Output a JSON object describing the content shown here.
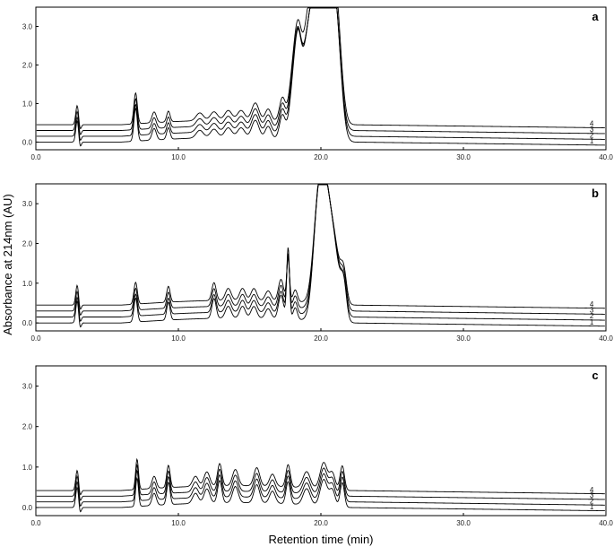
{
  "figure": {
    "ylabel": "Absorbance at 214nm (AU)",
    "xlabel": "Retention time (min)"
  },
  "colors": {
    "line": "#000000",
    "axis": "#000000",
    "text": "#222222"
  },
  "chart_data": [
    {
      "type": "line",
      "panel": "a",
      "xlim": [
        0,
        40
      ],
      "ylim": [
        -0.2,
        3.5
      ],
      "x_ticks": [
        "0.0",
        "10.0",
        "20.0",
        "30.0",
        "40.0"
      ],
      "y_ticks": [
        "0.0",
        "1.0",
        "2.0",
        "3.0"
      ],
      "grid": false,
      "series": [
        {
          "name": "1",
          "offset": 0.0,
          "peaks": [
            [
              2.9,
              0.55,
              0.1
            ],
            [
              7.0,
              0.85,
              0.12
            ],
            [
              8.3,
              0.3,
              0.15
            ],
            [
              9.3,
              0.3,
              0.12
            ],
            [
              11.5,
              0.2,
              0.25
            ],
            [
              12.5,
              0.22,
              0.25
            ],
            [
              13.5,
              0.25,
              0.25
            ],
            [
              14.4,
              0.25,
              0.25
            ],
            [
              15.4,
              0.45,
              0.25
            ],
            [
              16.3,
              0.3,
              0.2
            ],
            [
              17.3,
              0.6,
              0.2
            ],
            [
              18.0,
              1.0,
              0.25
            ],
            [
              18.4,
              2.3,
              0.25
            ],
            [
              19.0,
              2.0,
              0.3
            ],
            [
              19.5,
              2.3,
              0.3
            ],
            [
              20.0,
              2.5,
              0.4
            ],
            [
              20.6,
              2.6,
              0.4
            ],
            [
              21.1,
              2.3,
              0.35
            ]
          ]
        },
        {
          "name": "2",
          "offset": 0.15,
          "peaks": [
            [
              2.9,
              0.5,
              0.1
            ],
            [
              7.0,
              0.8,
              0.12
            ],
            [
              8.3,
              0.28,
              0.15
            ],
            [
              9.3,
              0.28,
              0.12
            ],
            [
              11.5,
              0.2,
              0.25
            ],
            [
              12.5,
              0.22,
              0.25
            ],
            [
              13.5,
              0.25,
              0.25
            ],
            [
              14.4,
              0.25,
              0.25
            ],
            [
              15.4,
              0.45,
              0.25
            ],
            [
              16.3,
              0.3,
              0.2
            ],
            [
              17.3,
              0.6,
              0.2
            ],
            [
              18.0,
              1.0,
              0.25
            ],
            [
              18.4,
              2.2,
              0.25
            ],
            [
              19.0,
              1.9,
              0.3
            ],
            [
              19.5,
              2.2,
              0.3
            ],
            [
              20.0,
              2.4,
              0.4
            ],
            [
              20.6,
              2.5,
              0.4
            ],
            [
              21.1,
              2.2,
              0.35
            ]
          ]
        },
        {
          "name": "3",
          "offset": 0.3,
          "peaks": [
            [
              2.9,
              0.5,
              0.1
            ],
            [
              7.0,
              0.8,
              0.12
            ],
            [
              8.3,
              0.28,
              0.15
            ],
            [
              9.3,
              0.28,
              0.12
            ],
            [
              11.5,
              0.2,
              0.25
            ],
            [
              12.5,
              0.22,
              0.25
            ],
            [
              13.5,
              0.25,
              0.25
            ],
            [
              14.4,
              0.25,
              0.25
            ],
            [
              15.4,
              0.45,
              0.25
            ],
            [
              16.3,
              0.3,
              0.2
            ],
            [
              17.3,
              0.6,
              0.2
            ],
            [
              18.0,
              1.0,
              0.25
            ],
            [
              18.4,
              2.1,
              0.25
            ],
            [
              19.0,
              1.8,
              0.3
            ],
            [
              19.5,
              2.1,
              0.3
            ],
            [
              20.0,
              2.3,
              0.4
            ],
            [
              20.6,
              2.4,
              0.4
            ],
            [
              21.1,
              2.1,
              0.35
            ]
          ]
        },
        {
          "name": "4",
          "offset": 0.45,
          "peaks": [
            [
              2.9,
              0.5,
              0.1
            ],
            [
              7.0,
              0.8,
              0.12
            ],
            [
              8.3,
              0.28,
              0.15
            ],
            [
              9.3,
              0.28,
              0.12
            ],
            [
              11.5,
              0.2,
              0.25
            ],
            [
              12.5,
              0.22,
              0.25
            ],
            [
              13.5,
              0.25,
              0.25
            ],
            [
              14.4,
              0.25,
              0.25
            ],
            [
              15.4,
              0.45,
              0.25
            ],
            [
              16.3,
              0.3,
              0.2
            ],
            [
              17.3,
              0.6,
              0.2
            ],
            [
              18.0,
              1.0,
              0.25
            ],
            [
              18.4,
              2.1,
              0.25
            ],
            [
              19.0,
              2.0,
              0.3
            ],
            [
              19.5,
              2.3,
              0.3
            ],
            [
              20.0,
              2.5,
              0.4
            ],
            [
              20.6,
              2.55,
              0.4
            ],
            [
              21.1,
              2.3,
              0.35
            ]
          ]
        }
      ]
    },
    {
      "type": "line",
      "panel": "b",
      "xlim": [
        0,
        40
      ],
      "ylim": [
        -0.2,
        3.5
      ],
      "x_ticks": [
        "0.0",
        "10.0",
        "20.0",
        "30.0",
        "40.0"
      ],
      "y_ticks": [
        "0.0",
        "1.0",
        "2.0",
        "3.0"
      ],
      "grid": false,
      "series": [
        {
          "name": "1",
          "offset": 0.0,
          "peaks": [
            [
              2.9,
              0.55,
              0.1
            ],
            [
              7.0,
              0.6,
              0.12
            ],
            [
              9.3,
              0.45,
              0.12
            ],
            [
              12.5,
              0.5,
              0.15
            ],
            [
              13.5,
              0.3,
              0.2
            ],
            [
              14.5,
              0.3,
              0.2
            ],
            [
              15.3,
              0.3,
              0.2
            ],
            [
              16.3,
              0.25,
              0.2
            ],
            [
              17.2,
              0.6,
              0.18
            ],
            [
              17.7,
              1.8,
              0.1
            ],
            [
              18.2,
              0.3,
              0.15
            ],
            [
              19.8,
              2.6,
              0.35
            ],
            [
              20.3,
              2.3,
              0.35
            ],
            [
              20.9,
              1.8,
              0.4
            ],
            [
              21.6,
              0.8,
              0.2
            ]
          ]
        },
        {
          "name": "2",
          "offset": 0.15,
          "peaks": [
            [
              2.9,
              0.5,
              0.1
            ],
            [
              7.0,
              0.55,
              0.12
            ],
            [
              9.3,
              0.4,
              0.12
            ],
            [
              12.5,
              0.45,
              0.15
            ],
            [
              13.5,
              0.3,
              0.2
            ],
            [
              14.5,
              0.3,
              0.2
            ],
            [
              15.3,
              0.3,
              0.2
            ],
            [
              16.3,
              0.25,
              0.2
            ],
            [
              17.2,
              0.55,
              0.18
            ],
            [
              17.7,
              1.5,
              0.1
            ],
            [
              18.2,
              0.3,
              0.15
            ],
            [
              19.8,
              2.4,
              0.35
            ],
            [
              20.3,
              2.2,
              0.35
            ],
            [
              20.9,
              1.7,
              0.4
            ],
            [
              21.6,
              0.7,
              0.2
            ]
          ]
        },
        {
          "name": "3",
          "offset": 0.3,
          "peaks": [
            [
              2.9,
              0.5,
              0.1
            ],
            [
              7.0,
              0.55,
              0.12
            ],
            [
              9.3,
              0.4,
              0.12
            ],
            [
              12.5,
              0.45,
              0.15
            ],
            [
              13.5,
              0.3,
              0.2
            ],
            [
              14.5,
              0.3,
              0.2
            ],
            [
              15.3,
              0.3,
              0.2
            ],
            [
              16.3,
              0.25,
              0.2
            ],
            [
              17.2,
              0.55,
              0.18
            ],
            [
              17.7,
              1.3,
              0.1
            ],
            [
              18.2,
              0.3,
              0.15
            ],
            [
              19.8,
              2.3,
              0.35
            ],
            [
              20.3,
              2.1,
              0.35
            ],
            [
              20.9,
              1.6,
              0.4
            ],
            [
              21.6,
              0.7,
              0.2
            ]
          ]
        },
        {
          "name": "4",
          "offset": 0.45,
          "peaks": [
            [
              2.9,
              0.5,
              0.1
            ],
            [
              7.0,
              0.55,
              0.12
            ],
            [
              9.3,
              0.4,
              0.12
            ],
            [
              12.5,
              0.45,
              0.15
            ],
            [
              13.5,
              0.3,
              0.2
            ],
            [
              14.5,
              0.3,
              0.2
            ],
            [
              15.3,
              0.3,
              0.2
            ],
            [
              16.3,
              0.25,
              0.2
            ],
            [
              17.2,
              0.55,
              0.18
            ],
            [
              17.7,
              1.1,
              0.1
            ],
            [
              18.2,
              0.3,
              0.15
            ],
            [
              19.8,
              2.2,
              0.35
            ],
            [
              20.3,
              2.0,
              0.35
            ],
            [
              20.9,
              1.5,
              0.4
            ],
            [
              21.6,
              0.7,
              0.2
            ]
          ]
        }
      ]
    },
    {
      "type": "line",
      "panel": "c",
      "xlim": [
        0,
        40
      ],
      "ylim": [
        -0.2,
        3.5
      ],
      "x_ticks": [
        "0.0",
        "10.0",
        "20.0",
        "30.0",
        "40.0"
      ],
      "y_ticks": [
        "0.0",
        "1.0",
        "2.0",
        "3.0"
      ],
      "grid": false,
      "series": [
        {
          "name": "1",
          "offset": 0.0,
          "peaks": [
            [
              2.9,
              0.5,
              0.1
            ],
            [
              7.1,
              0.7,
              0.1
            ],
            [
              8.3,
              0.3,
              0.15
            ],
            [
              9.3,
              0.55,
              0.12
            ],
            [
              11.2,
              0.25,
              0.2
            ],
            [
              12.0,
              0.35,
              0.2
            ],
            [
              12.9,
              0.55,
              0.15
            ],
            [
              14.0,
              0.4,
              0.2
            ],
            [
              15.5,
              0.45,
              0.2
            ],
            [
              16.6,
              0.3,
              0.2
            ],
            [
              17.7,
              0.55,
              0.15
            ],
            [
              19.0,
              0.4,
              0.25
            ],
            [
              20.2,
              0.65,
              0.25
            ],
            [
              20.8,
              0.4,
              0.2
            ],
            [
              21.5,
              0.6,
              0.15
            ]
          ]
        },
        {
          "name": "2",
          "offset": 0.14,
          "peaks": [
            [
              2.9,
              0.5,
              0.1
            ],
            [
              7.1,
              0.75,
              0.1
            ],
            [
              8.3,
              0.3,
              0.15
            ],
            [
              9.3,
              0.55,
              0.12
            ],
            [
              11.2,
              0.25,
              0.2
            ],
            [
              12.0,
              0.35,
              0.2
            ],
            [
              12.9,
              0.55,
              0.15
            ],
            [
              14.0,
              0.4,
              0.2
            ],
            [
              15.5,
              0.45,
              0.2
            ],
            [
              16.6,
              0.3,
              0.2
            ],
            [
              17.7,
              0.55,
              0.15
            ],
            [
              19.0,
              0.4,
              0.25
            ],
            [
              20.2,
              0.65,
              0.25
            ],
            [
              20.8,
              0.4,
              0.2
            ],
            [
              21.5,
              0.6,
              0.15
            ]
          ]
        },
        {
          "name": "3",
          "offset": 0.28,
          "peaks": [
            [
              2.9,
              0.5,
              0.1
            ],
            [
              7.1,
              0.75,
              0.1
            ],
            [
              8.3,
              0.3,
              0.15
            ],
            [
              9.3,
              0.55,
              0.12
            ],
            [
              11.2,
              0.25,
              0.2
            ],
            [
              12.0,
              0.35,
              0.2
            ],
            [
              12.9,
              0.55,
              0.15
            ],
            [
              14.0,
              0.4,
              0.2
            ],
            [
              15.5,
              0.45,
              0.2
            ],
            [
              16.6,
              0.3,
              0.2
            ],
            [
              17.7,
              0.55,
              0.15
            ],
            [
              19.0,
              0.4,
              0.25
            ],
            [
              20.2,
              0.65,
              0.25
            ],
            [
              20.8,
              0.4,
              0.2
            ],
            [
              21.5,
              0.6,
              0.15
            ]
          ]
        },
        {
          "name": "4",
          "offset": 0.42,
          "peaks": [
            [
              2.9,
              0.5,
              0.1
            ],
            [
              7.1,
              0.75,
              0.1
            ],
            [
              8.3,
              0.3,
              0.15
            ],
            [
              9.3,
              0.55,
              0.12
            ],
            [
              11.2,
              0.25,
              0.2
            ],
            [
              12.0,
              0.35,
              0.2
            ],
            [
              12.9,
              0.55,
              0.15
            ],
            [
              14.0,
              0.4,
              0.2
            ],
            [
              15.5,
              0.45,
              0.2
            ],
            [
              16.6,
              0.3,
              0.2
            ],
            [
              17.7,
              0.55,
              0.15
            ],
            [
              19.0,
              0.4,
              0.25
            ],
            [
              20.2,
              0.65,
              0.25
            ],
            [
              20.8,
              0.4,
              0.2
            ],
            [
              21.5,
              0.6,
              0.15
            ]
          ]
        }
      ]
    }
  ]
}
